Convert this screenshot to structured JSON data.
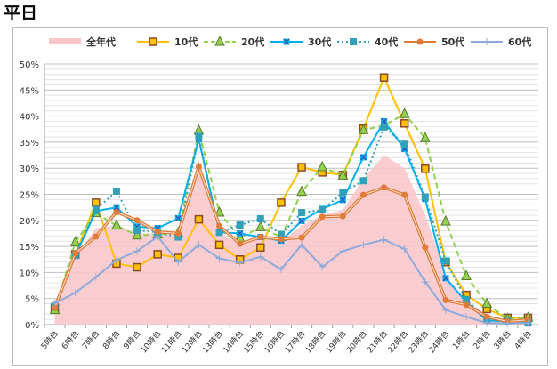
{
  "title": "平日",
  "chart_data": {
    "type": "line",
    "categories": [
      "5時台",
      "6時台",
      "7時台",
      "8時台",
      "9時台",
      "10時台",
      "11時台",
      "12時台",
      "13時台",
      "14時台",
      "15時台",
      "16時台",
      "17時台",
      "18時台",
      "19時台",
      "20時台",
      "21時台",
      "22時台",
      "23時台",
      "24時台",
      "1時台",
      "2時台",
      "3時台",
      "4時台"
    ],
    "ylim": [
      0,
      50
    ],
    "yticks": [
      "0%",
      "5%",
      "10%",
      "15%",
      "20%",
      "25%",
      "30%",
      "35%",
      "40%",
      "45%",
      "50%"
    ],
    "legend_position": "top",
    "grid": true,
    "series": [
      {
        "name": "全年代",
        "style": "area",
        "color": "#f9c6c9",
        "values": [
          3,
          13,
          18.5,
          19,
          17.5,
          17.5,
          17,
          30,
          17.5,
          15.5,
          16.5,
          16,
          19,
          21,
          22,
          28,
          32.5,
          30,
          21,
          9.5,
          4.5,
          2,
          0.8,
          0.8
        ]
      },
      {
        "name": "10代",
        "style": "line-square",
        "color": "#ffc000",
        "values": [
          3.2,
          13.5,
          23.4,
          11.7,
          11.0,
          13.5,
          12.8,
          20.2,
          15.3,
          12.5,
          14.8,
          23.4,
          30.2,
          29.2,
          28.7,
          37.6,
          47.4,
          38.6,
          29.9,
          12.0,
          5.7,
          3.0,
          1.3,
          1.3
        ]
      },
      {
        "name": "20代",
        "style": "dashed-triangle",
        "color": "#92d050",
        "values": [
          2.8,
          15.8,
          21.4,
          19.0,
          17.1,
          17.3,
          17.6,
          37.2,
          21.5,
          16.6,
          18.7,
          16.8,
          25.5,
          30.2,
          28.6,
          37.3,
          38.2,
          40.4,
          35.8,
          19.8,
          9.3,
          4.0,
          1.1,
          1.3
        ]
      },
      {
        "name": "30代",
        "style": "line-x",
        "color": "#00b0f0",
        "values": [
          3.7,
          13.2,
          21.8,
          22.5,
          18.8,
          18.5,
          20.4,
          35.6,
          17.7,
          17.5,
          16.8,
          16.1,
          19.9,
          22.2,
          23.9,
          32.1,
          39.0,
          33.7,
          24.1,
          8.9,
          4.3,
          0.8,
          0.6,
          0.6
        ]
      },
      {
        "name": "40代",
        "style": "dotted-square",
        "color": "#31a0b8",
        "values": [
          3.6,
          13.3,
          22.1,
          25.6,
          18.1,
          17.7,
          16.8,
          36.1,
          17.7,
          19.1,
          20.3,
          17.3,
          21.5,
          22.0,
          25.3,
          27.6,
          37.9,
          34.6,
          24.5,
          12.2,
          4.8,
          1.0,
          0.6,
          0.3
        ]
      },
      {
        "name": "50代",
        "style": "double-circle",
        "color": "#e07b39",
        "values": [
          3.2,
          13.7,
          16.9,
          21.6,
          20.0,
          17.8,
          17.5,
          30.3,
          18.9,
          15.5,
          16.8,
          16.4,
          16.7,
          20.7,
          20.8,
          24.9,
          26.3,
          24.9,
          14.8,
          4.7,
          3.8,
          1.5,
          0.6,
          0.9
        ]
      },
      {
        "name": "60代",
        "style": "line-plus",
        "color": "#8ea9db",
        "values": [
          4.1,
          6.1,
          9.1,
          12.4,
          14.1,
          16.9,
          12.0,
          15.3,
          12.7,
          11.9,
          13.0,
          10.6,
          15.3,
          11.1,
          14.1,
          15.3,
          16.3,
          14.5,
          8.2,
          2.8,
          1.5,
          0.3,
          0.2,
          0.3
        ]
      }
    ]
  }
}
